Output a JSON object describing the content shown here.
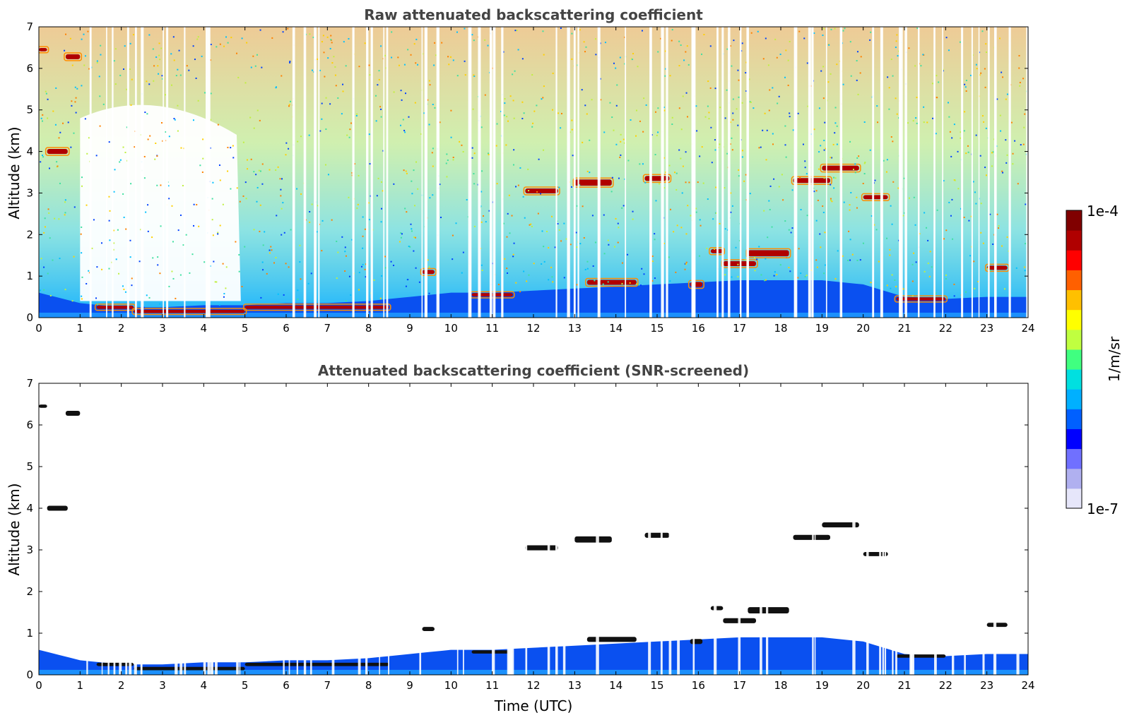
{
  "chart_data": [
    {
      "type": "heatmap",
      "title": "Raw attenuated backscattering coefficient",
      "xlabel": "",
      "ylabel": "Altitude (km)",
      "xlim": [
        0,
        24
      ],
      "ylim": [
        0,
        7
      ],
      "x_ticks": [
        "0",
        "1",
        "2",
        "3",
        "4",
        "5",
        "6",
        "7",
        "8",
        "9",
        "10",
        "11",
        "12",
        "13",
        "14",
        "15",
        "16",
        "17",
        "18",
        "19",
        "20",
        "21",
        "22",
        "23",
        "24"
      ],
      "y_ticks": [
        "0",
        "1",
        "2",
        "3",
        "4",
        "5",
        "6",
        "7"
      ],
      "boundary_layer_top_km": [
        [
          0,
          0.6
        ],
        [
          1,
          0.35
        ],
        [
          2,
          0.25
        ],
        [
          3,
          0.25
        ],
        [
          4,
          0.3
        ],
        [
          5,
          0.3
        ],
        [
          6,
          0.35
        ],
        [
          7,
          0.35
        ],
        [
          8,
          0.4
        ],
        [
          9,
          0.5
        ],
        [
          10,
          0.6
        ],
        [
          11,
          0.6
        ],
        [
          12,
          0.65
        ],
        [
          13,
          0.7
        ],
        [
          14,
          0.75
        ],
        [
          15,
          0.8
        ],
        [
          16,
          0.85
        ],
        [
          17,
          0.9
        ],
        [
          18,
          0.9
        ],
        [
          19,
          0.9
        ],
        [
          20,
          0.8
        ],
        [
          21,
          0.5
        ],
        [
          22,
          0.45
        ],
        [
          23,
          0.5
        ],
        [
          24,
          0.5
        ]
      ],
      "cloud_layers": [
        {
          "x0": 0.0,
          "x1": 0.2,
          "alt": 6.45,
          "thick": 0.08
        },
        {
          "x0": 0.65,
          "x1": 1.0,
          "alt": 6.28,
          "thick": 0.12
        },
        {
          "x0": 0.2,
          "x1": 0.7,
          "alt": 4.0,
          "thick": 0.12
        },
        {
          "x0": 1.4,
          "x1": 2.3,
          "alt": 0.25,
          "thick": 0.08
        },
        {
          "x0": 2.3,
          "x1": 5.0,
          "alt": 0.15,
          "thick": 0.08
        },
        {
          "x0": 5.0,
          "x1": 8.5,
          "alt": 0.25,
          "thick": 0.08
        },
        {
          "x0": 9.3,
          "x1": 9.6,
          "alt": 1.1,
          "thick": 0.1
        },
        {
          "x0": 10.5,
          "x1": 11.5,
          "alt": 0.55,
          "thick": 0.08
        },
        {
          "x0": 11.8,
          "x1": 12.6,
          "alt": 3.05,
          "thick": 0.12
        },
        {
          "x0": 13.0,
          "x1": 13.9,
          "alt": 3.25,
          "thick": 0.15
        },
        {
          "x0": 14.7,
          "x1": 15.3,
          "alt": 3.35,
          "thick": 0.12
        },
        {
          "x0": 13.3,
          "x1": 14.5,
          "alt": 0.85,
          "thick": 0.12
        },
        {
          "x0": 15.8,
          "x1": 16.1,
          "alt": 0.8,
          "thick": 0.12
        },
        {
          "x0": 16.3,
          "x1": 16.6,
          "alt": 1.6,
          "thick": 0.1
        },
        {
          "x0": 16.6,
          "x1": 17.4,
          "alt": 1.3,
          "thick": 0.12
        },
        {
          "x0": 17.2,
          "x1": 18.2,
          "alt": 1.55,
          "thick": 0.15
        },
        {
          "x0": 18.3,
          "x1": 19.2,
          "alt": 3.3,
          "thick": 0.12
        },
        {
          "x0": 19.0,
          "x1": 19.9,
          "alt": 3.6,
          "thick": 0.12
        },
        {
          "x0": 20.0,
          "x1": 20.6,
          "alt": 2.9,
          "thick": 0.1
        },
        {
          "x0": 20.8,
          "x1": 22.0,
          "alt": 0.45,
          "thick": 0.08
        },
        {
          "x0": 23.0,
          "x1": 23.5,
          "alt": 1.2,
          "thick": 0.1
        }
      ]
    },
    {
      "type": "heatmap",
      "title": "Attenuated backscattering coefficient (SNR-screened)",
      "xlabel": "Time (UTC)",
      "ylabel": "Altitude (km)",
      "xlim": [
        0,
        24
      ],
      "ylim": [
        0,
        7
      ],
      "x_ticks": [
        "0",
        "1",
        "2",
        "3",
        "4",
        "5",
        "6",
        "7",
        "8",
        "9",
        "10",
        "11",
        "12",
        "13",
        "14",
        "15",
        "16",
        "17",
        "18",
        "19",
        "20",
        "21",
        "22",
        "23",
        "24"
      ],
      "y_ticks": [
        "0",
        "1",
        "2",
        "3",
        "4",
        "5",
        "6",
        "7"
      ]
    }
  ],
  "colorbar": {
    "label": "1/m/sr",
    "max_label": "1e-4",
    "min_label": "1e-7",
    "scale": "log",
    "colors": [
      "#e6e6fa",
      "#b0b0f0",
      "#7070ff",
      "#0000ff",
      "#0060ff",
      "#00b0ff",
      "#00e0e0",
      "#40ff80",
      "#c0ff40",
      "#ffff00",
      "#ffc000",
      "#ff6000",
      "#ff0000",
      "#b00000",
      "#800000"
    ]
  }
}
